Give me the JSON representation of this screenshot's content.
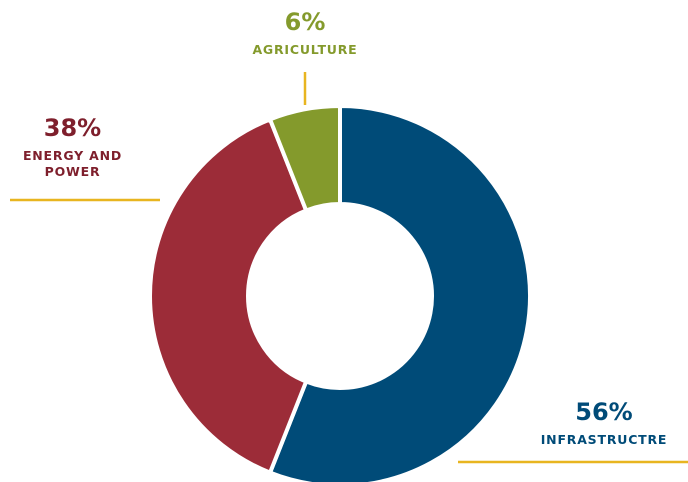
{
  "chart_data": {
    "type": "pie",
    "categories": [
      "INFRASTRUCTRE",
      "ENERGY AND POWER",
      "AGRICULTURE"
    ],
    "values": [
      56,
      38,
      6
    ],
    "labels": [
      "56%",
      "38%",
      "6%"
    ],
    "colors": [
      "#004b78",
      "#9c2c38",
      "#849a2c"
    ],
    "label_colors": [
      "#004b78",
      "#7e1f2c",
      "#849a2c"
    ],
    "leader_color": "#e8b520",
    "donut": true
  }
}
